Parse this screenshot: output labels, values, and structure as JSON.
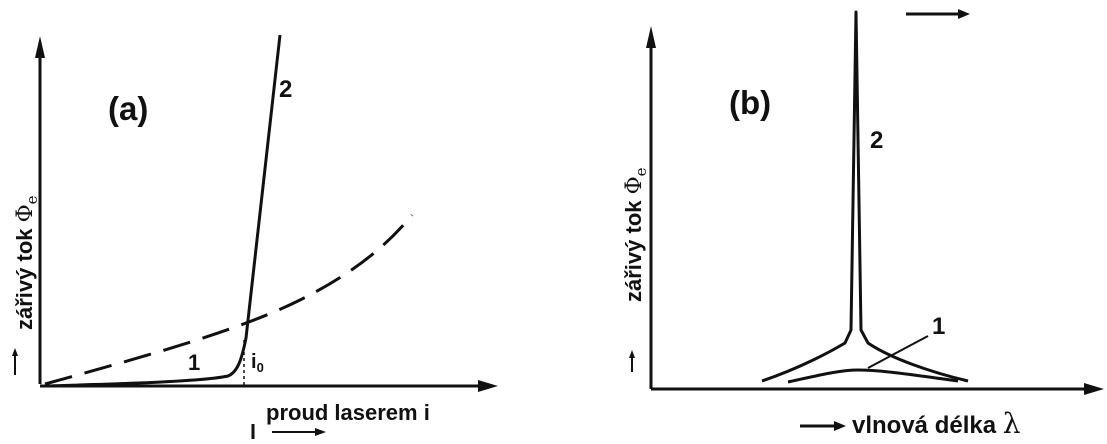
{
  "panel_a": {
    "label": "(a)",
    "y_axis_label": "zářivý tok",
    "y_axis_symbol": "Φ",
    "y_axis_subscript": "e",
    "x_axis_label": "proud laserem",
    "x_axis_variable": "i",
    "curve_1_label": "1",
    "curve_2_label": "2",
    "threshold_label": "i",
    "threshold_subscript": "0"
  },
  "panel_b": {
    "label": "(b)",
    "y_axis_label": "zářivý tok",
    "y_axis_symbol": "Φ",
    "y_axis_subscript": "e",
    "x_axis_label": "vlnová délka",
    "x_axis_variable": "λ",
    "curve_1_label": "1",
    "curve_2_label": "2"
  },
  "colors": {
    "ink": "#111111",
    "background": "#ffffff"
  }
}
